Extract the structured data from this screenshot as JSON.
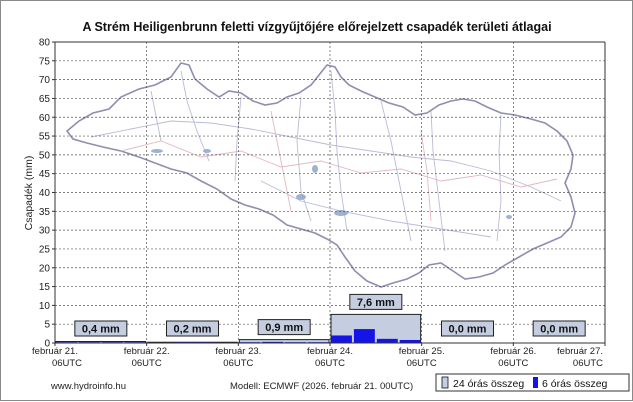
{
  "chart_data": {
    "type": "bar",
    "title": "A Strém Heiligenbrunn feletti vízgyűjtőjére előrejelzett csapadék területi átlagai",
    "xlabel": "",
    "ylabel": "Csapadék (mm)",
    "ylim": [
      0,
      80
    ],
    "yticks": [
      "0",
      "5",
      "10",
      "15",
      "20",
      "25",
      "30",
      "35",
      "40",
      "45",
      "50",
      "55",
      "60",
      "65",
      "70",
      "75",
      "80"
    ],
    "grid": true,
    "x_tick_labels": [
      {
        "day": "február 21.",
        "time": "06UTC"
      },
      {
        "day": "február 22.",
        "time": "06UTC"
      },
      {
        "day": "február 23.",
        "time": "06UTC"
      },
      {
        "day": "február 24.",
        "time": "06UTC"
      },
      {
        "day": "február 25.",
        "time": "06UTC"
      },
      {
        "day": "február 26.",
        "time": "06UTC"
      },
      {
        "day": "február 27.",
        "time": "06UTC"
      }
    ],
    "series": [
      {
        "name": "24 órás összeg",
        "color": "#c5cde0",
        "values": [
          0.4,
          0.2,
          0.9,
          7.6,
          0.0,
          0.0
        ],
        "labels": [
          "0,4 mm",
          "0,2 mm",
          "0,9 mm",
          "7,6 mm",
          "0,0 mm",
          "0,0 mm"
        ]
      },
      {
        "name": "6 órás összeg",
        "color": "#1414e6",
        "values": [
          0.1,
          0.1,
          0.1,
          0.1,
          0.0,
          0.1,
          0.1,
          0.0,
          0.2,
          0.3,
          0.2,
          0.2,
          2.0,
          3.7,
          1.1,
          0.8,
          0.0,
          0.0,
          0.0,
          0.0,
          0.0,
          0.0,
          0.0,
          0.0
        ]
      }
    ],
    "legend_position": "bottom-right"
  },
  "footer": {
    "website": "www.hydroinfo.hu",
    "model": "Modell: ECMWF (2026. február 21. 00UTC)"
  },
  "colors": {
    "axis": "#333333",
    "grid": "#555555",
    "map_outline": "#8e8eb0",
    "map_rivers": "#b9bcd6",
    "map_roads": "#e4b8c0",
    "map_lakes": "#8fa6c8"
  },
  "icons": [
    "catchment-map-background",
    "legend-swatch-24h",
    "legend-swatch-6h"
  ]
}
